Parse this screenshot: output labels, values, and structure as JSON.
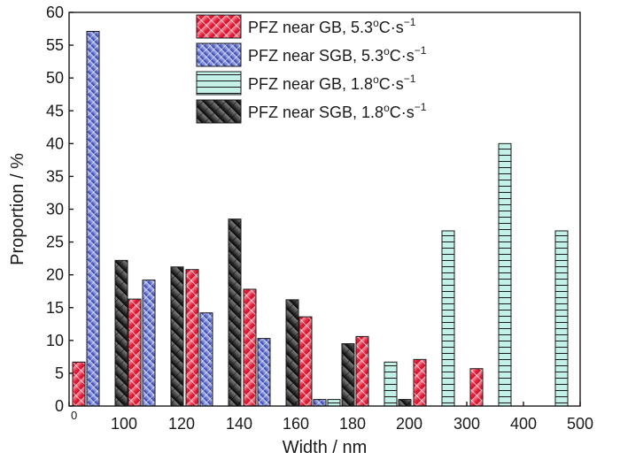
{
  "chart_data": {
    "type": "bar",
    "xlabel": "Width / nm",
    "ylabel": "Proportion / %",
    "ylim": [
      0,
      60
    ],
    "y_ticks": [
      "0",
      "5",
      "10",
      "15",
      "20",
      "25",
      "30",
      "35",
      "40",
      "45",
      "50",
      "55",
      "60"
    ],
    "x_ticks": [
      "0",
      "100",
      "120",
      "140",
      "160",
      "180",
      "200",
      "300",
      "400",
      "500"
    ],
    "groups": [
      "0-100",
      "100-120",
      "120-140",
      "140-160",
      "160-180",
      "180-200",
      "200-300",
      "300-400",
      "400-500"
    ],
    "series": [
      {
        "name": "PFZ near GB, 5.3",
        "label_suffix": "oC·s",
        "rate_exp": "−1",
        "legend_mark": "red-hatched",
        "values": [
          6.7,
          16.3,
          20.8,
          17.8,
          13.6,
          10.6,
          7.1,
          5.7,
          0
        ]
      },
      {
        "name": "PFZ near SGB, 5.3",
        "label_suffix": "oC·s",
        "rate_exp": "−1",
        "legend_mark": "blue-hatched",
        "values": [
          57.1,
          19.2,
          14.2,
          10.3,
          1.0,
          0,
          0,
          0,
          0
        ]
      },
      {
        "name": "PFZ near GB, 1.8",
        "label_suffix": "oC·s",
        "rate_exp": "−1",
        "legend_mark": "cyan-horizontal-lines",
        "values": [
          0,
          0,
          0,
          0,
          1.0,
          6.7,
          26.7,
          40.0,
          26.7
        ]
      },
      {
        "name": "PFZ near SGB, 1.8",
        "label_suffix": "oC·s",
        "rate_exp": "−1",
        "legend_mark": "black-crosshatched",
        "values": [
          22.2,
          21.2,
          28.5,
          16.2,
          9.5,
          1.0,
          0,
          0,
          0
        ]
      }
    ]
  },
  "colors": {
    "gb_fast": "#e8203c",
    "sgb_fast": "#3a4db8",
    "gb_slow": "#bff0e6",
    "sgb_slow": "#3a3a3a",
    "axis": "#1a1a1a"
  }
}
